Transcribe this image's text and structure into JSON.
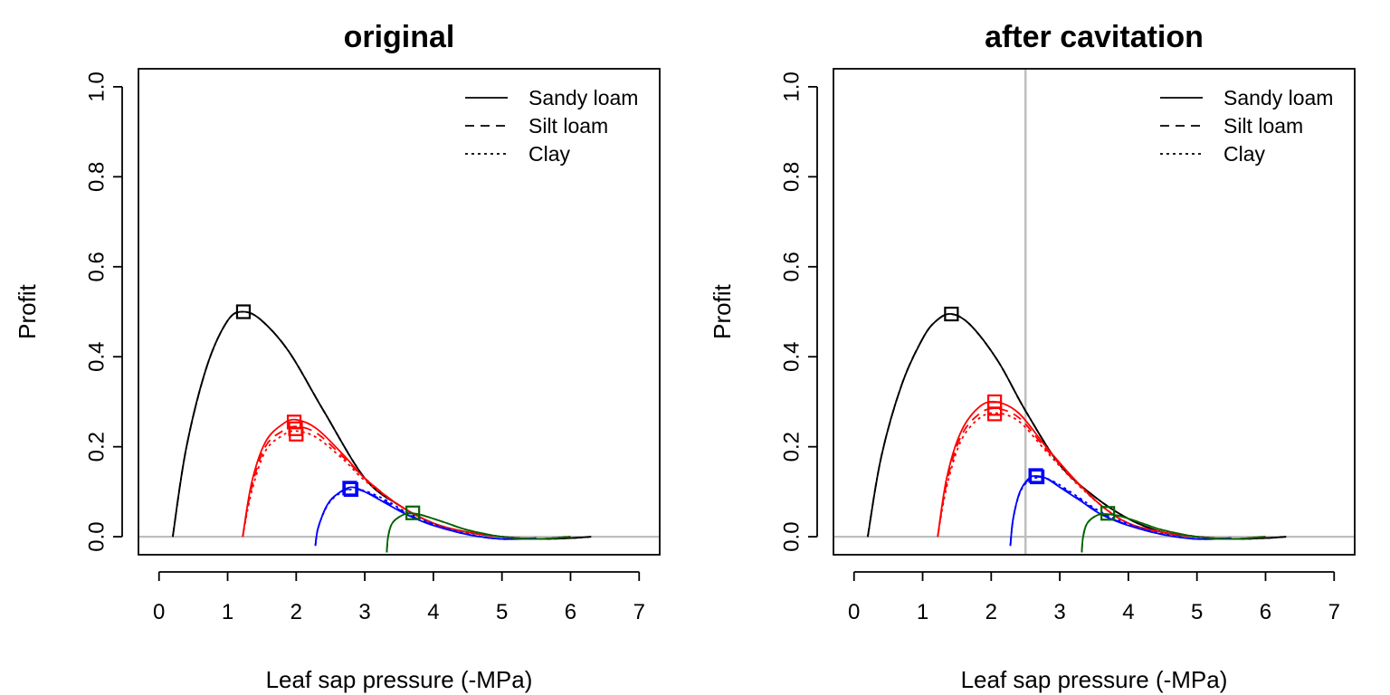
{
  "figure": {
    "colors": {
      "black": "#000000",
      "red": "#ff0000",
      "blue": "#0000ff",
      "green": "#006400",
      "reference_line": "#bebebe"
    }
  },
  "chart_data": [
    {
      "type": "line",
      "title": "original",
      "xlabel": "Leaf sap pressure (-MPa)",
      "ylabel": "Profit",
      "xlim": [
        -0.3,
        7.3
      ],
      "ylim": [
        -0.04,
        1.04
      ],
      "x_ticks": [
        0,
        1,
        2,
        3,
        4,
        5,
        6,
        7
      ],
      "y_ticks": [
        0.0,
        0.2,
        0.4,
        0.6,
        0.8,
        1.0
      ],
      "x_tick_labels": [
        "0",
        "1",
        "2",
        "3",
        "4",
        "5",
        "6",
        "7"
      ],
      "y_tick_labels": [
        "0.0",
        "0.2",
        "0.4",
        "0.6",
        "0.8",
        "1.0"
      ],
      "grid": false,
      "hline": 0,
      "vline": null,
      "legend": {
        "position": "top-right",
        "entries": [
          {
            "label": "Sandy loam",
            "linestyle": "solid"
          },
          {
            "label": "Silt loam",
            "linestyle": "dashed"
          },
          {
            "label": "Clay",
            "linestyle": "dotted"
          }
        ]
      },
      "series": [
        {
          "color": "black",
          "linestyle": "solid",
          "x": [
            0.2,
            0.4,
            0.7,
            1.0,
            1.23,
            1.5,
            1.9,
            2.4,
            3.0,
            3.5,
            4.0,
            4.5,
            5.0,
            5.5,
            6.0,
            6.3
          ],
          "y": [
            0.0,
            0.2,
            0.38,
            0.48,
            0.5,
            0.48,
            0.41,
            0.28,
            0.13,
            0.07,
            0.03,
            0.01,
            0.0,
            -0.005,
            -0.003,
            0.0
          ]
        },
        {
          "color": "black",
          "linestyle": "dashed",
          "x": [
            0.2,
            0.4,
            0.7,
            1.0,
            1.23,
            1.5,
            1.9,
            2.4,
            3.0,
            3.5,
            4.0,
            4.5,
            5.0,
            5.5,
            6.0,
            6.3
          ],
          "y": [
            0.0,
            0.2,
            0.38,
            0.48,
            0.5,
            0.48,
            0.41,
            0.28,
            0.13,
            0.07,
            0.03,
            0.01,
            0.0,
            -0.005,
            -0.003,
            0.0
          ]
        },
        {
          "color": "black",
          "linestyle": "dotted",
          "x": [
            0.2,
            0.4,
            0.7,
            1.0,
            1.23,
            1.5,
            1.9,
            2.4,
            3.0,
            3.5,
            4.0,
            4.5,
            5.0,
            5.5,
            6.0,
            6.3
          ],
          "y": [
            0.0,
            0.2,
            0.38,
            0.48,
            0.5,
            0.48,
            0.41,
            0.28,
            0.13,
            0.07,
            0.03,
            0.01,
            0.0,
            -0.005,
            -0.003,
            0.0
          ]
        },
        {
          "color": "red",
          "linestyle": "solid",
          "x": [
            1.22,
            1.35,
            1.55,
            1.8,
            2.0,
            2.3,
            2.7,
            3.0,
            3.5,
            4.0,
            4.5,
            5.0,
            5.5,
            6.0
          ],
          "y": [
            0.0,
            0.12,
            0.21,
            0.25,
            0.26,
            0.24,
            0.18,
            0.13,
            0.07,
            0.03,
            0.01,
            0.0,
            -0.005,
            0.0
          ]
        },
        {
          "color": "red",
          "linestyle": "dashed",
          "x": [
            1.22,
            1.35,
            1.55,
            1.8,
            2.0,
            2.3,
            2.7,
            3.0,
            3.5,
            4.0,
            4.5,
            5.0,
            5.5,
            6.0
          ],
          "y": [
            0.0,
            0.11,
            0.2,
            0.235,
            0.245,
            0.23,
            0.175,
            0.13,
            0.07,
            0.03,
            0.01,
            0.0,
            -0.005,
            0.0
          ]
        },
        {
          "color": "red",
          "linestyle": "dotted",
          "x": [
            1.22,
            1.35,
            1.55,
            1.8,
            2.0,
            2.3,
            2.7,
            3.0,
            3.5,
            4.0,
            4.5,
            5.0,
            5.5,
            6.0
          ],
          "y": [
            0.0,
            0.1,
            0.19,
            0.225,
            0.235,
            0.22,
            0.17,
            0.125,
            0.07,
            0.03,
            0.01,
            0.0,
            -0.005,
            0.0
          ]
        },
        {
          "color": "blue",
          "linestyle": "solid",
          "x": [
            2.28,
            2.32,
            2.45,
            2.6,
            2.8,
            3.0,
            3.3,
            3.6,
            4.0,
            4.5,
            5.0,
            5.5
          ],
          "y": [
            -0.02,
            0.02,
            0.07,
            0.095,
            0.11,
            0.1,
            0.075,
            0.05,
            0.025,
            0.005,
            -0.005,
            -0.003
          ]
        },
        {
          "color": "blue",
          "linestyle": "dashed",
          "x": [
            2.28,
            2.32,
            2.45,
            2.6,
            2.8,
            3.0,
            3.3,
            3.6,
            4.0,
            4.5,
            5.0,
            5.5
          ],
          "y": [
            -0.02,
            0.02,
            0.07,
            0.095,
            0.107,
            0.1,
            0.078,
            0.052,
            0.026,
            0.005,
            -0.005,
            -0.003
          ]
        },
        {
          "color": "blue",
          "linestyle": "dotted",
          "x": [
            2.28,
            2.32,
            2.45,
            2.6,
            2.8,
            3.0,
            3.3,
            3.6,
            4.0,
            4.5,
            5.0,
            5.5
          ],
          "y": [
            -0.02,
            0.02,
            0.068,
            0.093,
            0.105,
            0.102,
            0.082,
            0.055,
            0.028,
            0.006,
            -0.005,
            -0.003
          ]
        },
        {
          "color": "green",
          "linestyle": "solid",
          "x": [
            3.32,
            3.34,
            3.4,
            3.55,
            3.7,
            3.9,
            4.2,
            4.5,
            5.0,
            5.5,
            6.0
          ],
          "y": [
            -0.035,
            0.0,
            0.03,
            0.048,
            0.052,
            0.045,
            0.03,
            0.015,
            0.0,
            -0.005,
            0.0
          ]
        },
        {
          "color": "green",
          "linestyle": "dashed",
          "x": [
            3.32,
            3.34,
            3.4,
            3.55,
            3.7,
            3.9,
            4.2,
            4.5,
            5.0,
            5.5,
            6.0
          ],
          "y": [
            -0.035,
            0.0,
            0.03,
            0.048,
            0.052,
            0.045,
            0.03,
            0.015,
            0.0,
            -0.005,
            0.0
          ]
        },
        {
          "color": "green",
          "linestyle": "dotted",
          "x": [
            3.32,
            3.34,
            3.4,
            3.55,
            3.7,
            3.9,
            4.2,
            4.5,
            5.0,
            5.5,
            6.0
          ],
          "y": [
            -0.035,
            0.0,
            0.03,
            0.048,
            0.052,
            0.045,
            0.03,
            0.015,
            0.0,
            -0.005,
            0.0
          ]
        }
      ],
      "optima": [
        {
          "color": "black",
          "x": 1.23,
          "y": 0.5
        },
        {
          "color": "red",
          "x": 1.97,
          "y": 0.255
        },
        {
          "color": "red",
          "x": 1.99,
          "y": 0.24
        },
        {
          "color": "red",
          "x": 2.0,
          "y": 0.228
        },
        {
          "color": "blue",
          "x": 2.78,
          "y": 0.108
        },
        {
          "color": "blue",
          "x": 2.8,
          "y": 0.105
        },
        {
          "color": "green",
          "x": 3.7,
          "y": 0.053
        }
      ]
    },
    {
      "type": "line",
      "title": "after cavitation",
      "xlabel": "Leaf sap pressure (-MPa)",
      "ylabel": "Profit",
      "xlim": [
        -0.3,
        7.3
      ],
      "ylim": [
        -0.04,
        1.04
      ],
      "x_ticks": [
        0,
        1,
        2,
        3,
        4,
        5,
        6,
        7
      ],
      "y_ticks": [
        0.0,
        0.2,
        0.4,
        0.6,
        0.8,
        1.0
      ],
      "x_tick_labels": [
        "0",
        "1",
        "2",
        "3",
        "4",
        "5",
        "6",
        "7"
      ],
      "y_tick_labels": [
        "0.0",
        "0.2",
        "0.4",
        "0.6",
        "0.8",
        "1.0"
      ],
      "grid": false,
      "hline": 0,
      "vline": 2.5,
      "legend": {
        "position": "top-right",
        "entries": [
          {
            "label": "Sandy loam",
            "linestyle": "solid"
          },
          {
            "label": "Silt loam",
            "linestyle": "dashed"
          },
          {
            "label": "Clay",
            "linestyle": "dotted"
          }
        ]
      },
      "series": [
        {
          "color": "black",
          "linestyle": "solid",
          "x": [
            0.2,
            0.4,
            0.7,
            1.0,
            1.2,
            1.42,
            1.7,
            2.1,
            2.5,
            3.0,
            3.5,
            4.0,
            4.5,
            5.0,
            5.5,
            6.0,
            6.3
          ],
          "y": [
            0.0,
            0.18,
            0.34,
            0.44,
            0.48,
            0.495,
            0.47,
            0.39,
            0.28,
            0.16,
            0.09,
            0.04,
            0.01,
            0.0,
            -0.005,
            -0.003,
            0.0
          ]
        },
        {
          "color": "black",
          "linestyle": "dashed",
          "x": [
            0.2,
            0.4,
            0.7,
            1.0,
            1.2,
            1.42,
            1.7,
            2.1,
            2.5,
            3.0,
            3.5,
            4.0,
            4.5,
            5.0,
            5.5,
            6.0,
            6.3
          ],
          "y": [
            0.0,
            0.18,
            0.34,
            0.44,
            0.48,
            0.495,
            0.47,
            0.39,
            0.28,
            0.16,
            0.09,
            0.04,
            0.01,
            0.0,
            -0.005,
            -0.003,
            0.0
          ]
        },
        {
          "color": "black",
          "linestyle": "dotted",
          "x": [
            0.2,
            0.4,
            0.7,
            1.0,
            1.2,
            1.42,
            1.7,
            2.1,
            2.5,
            3.0,
            3.5,
            4.0,
            4.5,
            5.0,
            5.5,
            6.0,
            6.3
          ],
          "y": [
            0.0,
            0.18,
            0.34,
            0.44,
            0.48,
            0.495,
            0.47,
            0.39,
            0.28,
            0.16,
            0.09,
            0.04,
            0.01,
            0.0,
            -0.005,
            -0.003,
            0.0
          ]
        },
        {
          "color": "red",
          "linestyle": "solid",
          "x": [
            1.22,
            1.35,
            1.55,
            1.8,
            2.05,
            2.4,
            2.8,
            3.2,
            3.6,
            4.0,
            4.5,
            5.0,
            5.5,
            6.0
          ],
          "y": [
            0.0,
            0.13,
            0.23,
            0.285,
            0.3,
            0.275,
            0.2,
            0.13,
            0.07,
            0.03,
            0.01,
            0.0,
            -0.005,
            0.0
          ]
        },
        {
          "color": "red",
          "linestyle": "dashed",
          "x": [
            1.22,
            1.35,
            1.55,
            1.8,
            2.05,
            2.4,
            2.8,
            3.2,
            3.6,
            4.0,
            4.5,
            5.0,
            5.5,
            6.0
          ],
          "y": [
            0.0,
            0.12,
            0.22,
            0.27,
            0.285,
            0.265,
            0.195,
            0.128,
            0.07,
            0.03,
            0.01,
            0.0,
            -0.005,
            0.0
          ]
        },
        {
          "color": "red",
          "linestyle": "dotted",
          "x": [
            1.22,
            1.35,
            1.55,
            1.8,
            2.05,
            2.4,
            2.8,
            3.2,
            3.6,
            4.0,
            4.5,
            5.0,
            5.5,
            6.0
          ],
          "y": [
            0.0,
            0.11,
            0.21,
            0.26,
            0.275,
            0.257,
            0.19,
            0.125,
            0.07,
            0.03,
            0.01,
            0.0,
            -0.005,
            0.0
          ]
        },
        {
          "color": "blue",
          "linestyle": "solid",
          "x": [
            2.28,
            2.32,
            2.42,
            2.55,
            2.65,
            2.8,
            3.0,
            3.3,
            3.6,
            4.0,
            4.5,
            5.0,
            5.5
          ],
          "y": [
            -0.02,
            0.04,
            0.1,
            0.13,
            0.135,
            0.13,
            0.11,
            0.08,
            0.05,
            0.025,
            0.005,
            -0.005,
            -0.003
          ]
        },
        {
          "color": "blue",
          "linestyle": "dashed",
          "x": [
            2.28,
            2.32,
            2.42,
            2.55,
            2.65,
            2.8,
            3.0,
            3.3,
            3.6,
            4.0,
            4.5,
            5.0,
            5.5
          ],
          "y": [
            -0.02,
            0.04,
            0.1,
            0.128,
            0.133,
            0.13,
            0.112,
            0.082,
            0.052,
            0.026,
            0.005,
            -0.005,
            -0.003
          ]
        },
        {
          "color": "blue",
          "linestyle": "dotted",
          "x": [
            2.28,
            2.32,
            2.42,
            2.55,
            2.65,
            2.8,
            3.0,
            3.3,
            3.6,
            4.0,
            4.5,
            5.0,
            5.5
          ],
          "y": [
            -0.02,
            0.04,
            0.098,
            0.126,
            0.131,
            0.13,
            0.115,
            0.085,
            0.055,
            0.028,
            0.006,
            -0.005,
            -0.003
          ]
        },
        {
          "color": "green",
          "linestyle": "solid",
          "x": [
            3.32,
            3.34,
            3.4,
            3.55,
            3.7,
            3.9,
            4.2,
            4.5,
            5.0,
            5.5,
            6.0
          ],
          "y": [
            -0.035,
            0.0,
            0.03,
            0.048,
            0.05,
            0.045,
            0.03,
            0.015,
            0.0,
            -0.005,
            0.0
          ]
        },
        {
          "color": "green",
          "linestyle": "dashed",
          "x": [
            3.32,
            3.34,
            3.4,
            3.55,
            3.7,
            3.9,
            4.2,
            4.5,
            5.0,
            5.5,
            6.0
          ],
          "y": [
            -0.035,
            0.0,
            0.03,
            0.048,
            0.05,
            0.045,
            0.03,
            0.015,
            0.0,
            -0.005,
            0.0
          ]
        },
        {
          "color": "green",
          "linestyle": "dotted",
          "x": [
            3.32,
            3.34,
            3.4,
            3.55,
            3.7,
            3.9,
            4.2,
            4.5,
            5.0,
            5.5,
            6.0
          ],
          "y": [
            -0.035,
            0.0,
            0.03,
            0.048,
            0.05,
            0.045,
            0.03,
            0.015,
            0.0,
            -0.005,
            0.0
          ]
        }
      ],
      "optima": [
        {
          "color": "black",
          "x": 1.42,
          "y": 0.495
        },
        {
          "color": "red",
          "x": 2.05,
          "y": 0.3
        },
        {
          "color": "red",
          "x": 2.05,
          "y": 0.285
        },
        {
          "color": "red",
          "x": 2.05,
          "y": 0.273
        },
        {
          "color": "blue",
          "x": 2.65,
          "y": 0.136
        },
        {
          "color": "blue",
          "x": 2.67,
          "y": 0.133
        },
        {
          "color": "green",
          "x": 3.7,
          "y": 0.052
        }
      ]
    }
  ]
}
